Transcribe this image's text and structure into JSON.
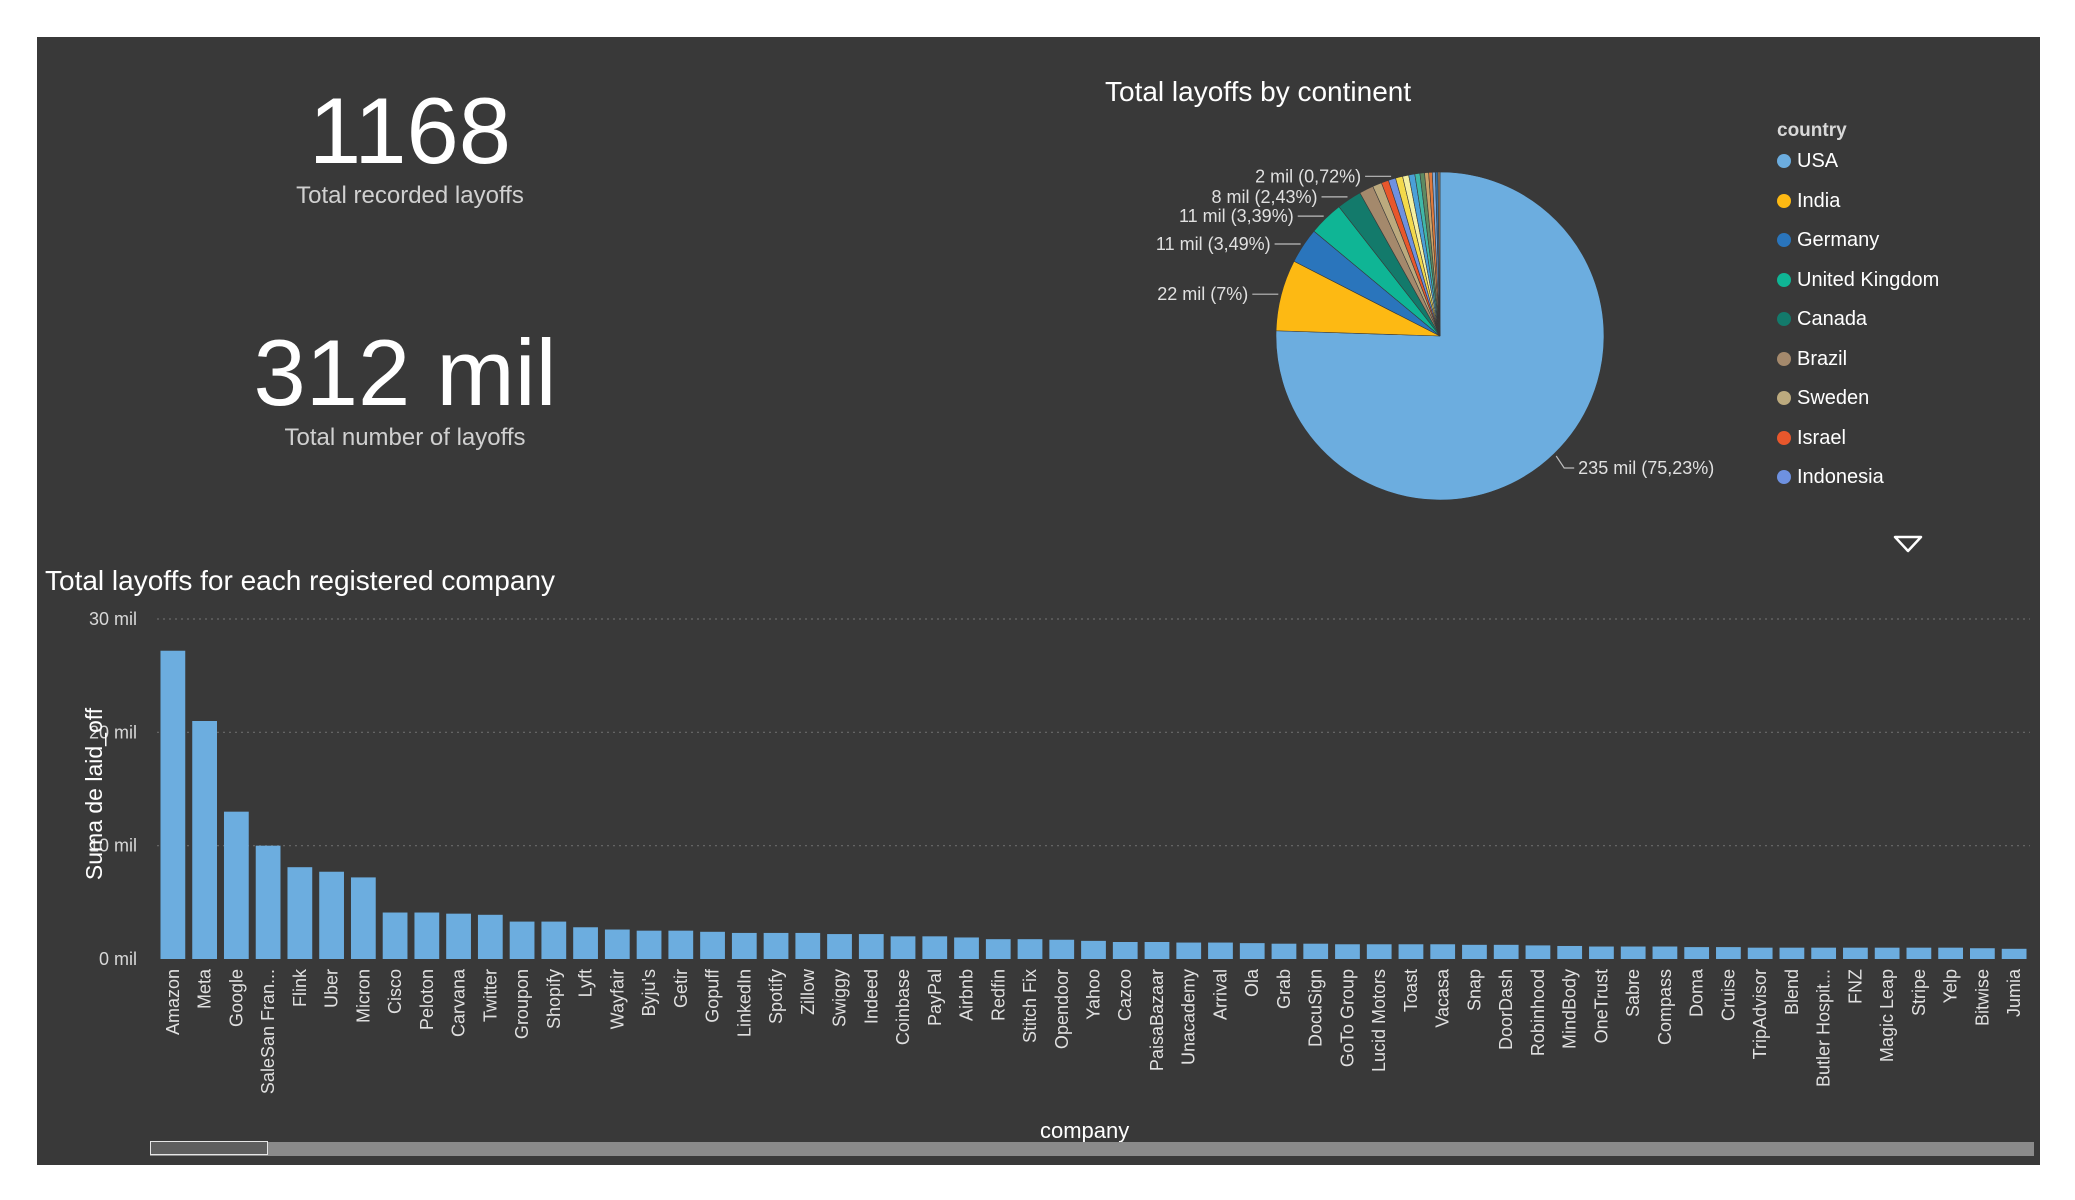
{
  "kpis": [
    {
      "value": "1168",
      "caption": "Total recorded layoffs"
    },
    {
      "value": "312 mil",
      "caption": "Total number of layoffs"
    }
  ],
  "pie": {
    "title": "Total layoffs by continent",
    "legend_title": "country",
    "more_icon": "triangle-down-icon",
    "chart_data": {
      "type": "pie",
      "title": "Total layoffs by continent",
      "legend_title": "country",
      "slices": [
        {
          "name": "USA",
          "value": 235,
          "percent": 75.23,
          "label": "235 mil (75,23%)",
          "color": "#6caddf"
        },
        {
          "name": "India",
          "value": 22,
          "percent": 7.0,
          "label": "22 mil (7%)",
          "color": "#fdb913"
        },
        {
          "name": "Germany",
          "value": 11,
          "percent": 3.49,
          "label": "11 mil (3,49%)",
          "color": "#2a75bc"
        },
        {
          "name": "United Kingdom",
          "value": 11,
          "percent": 3.39,
          "label": "11 mil (3,39%)",
          "color": "#0fb595"
        },
        {
          "name": "Canada",
          "value": 8,
          "percent": 2.43,
          "label": "8 mil (2,43%)",
          "color": "#137a6b"
        },
        {
          "name": "Brazil",
          "value": null,
          "percent": 1.4,
          "label": "",
          "color": "#a4896c"
        },
        {
          "name": "Sweden",
          "value": null,
          "percent": 0.9,
          "label": "",
          "color": "#bcaa7e"
        },
        {
          "name": "Israel",
          "value": null,
          "percent": 0.72,
          "label": "",
          "color": "#e8572c"
        },
        {
          "name": "Indonesia",
          "value": 2,
          "percent": 0.72,
          "label": "2 mil (0,72%)",
          "color": "#6e91e0"
        },
        {
          "name": "",
          "value": null,
          "percent": 0.7,
          "label": "",
          "color": "#f3d94b"
        },
        {
          "name": "",
          "value": null,
          "percent": 0.6,
          "label": "",
          "color": "#f5f0a0"
        },
        {
          "name": "",
          "value": null,
          "percent": 0.6,
          "label": "",
          "color": "#4aa0d8"
        },
        {
          "name": "",
          "value": null,
          "percent": 0.5,
          "label": "",
          "color": "#3fb8a8"
        },
        {
          "name": "",
          "value": null,
          "percent": 0.45,
          "label": "",
          "color": "#5d8a62"
        },
        {
          "name": "",
          "value": null,
          "percent": 0.4,
          "label": "",
          "color": "#c9a36a"
        },
        {
          "name": "",
          "value": null,
          "percent": 0.35,
          "label": "",
          "color": "#e07a3c"
        },
        {
          "name": "",
          "value": null,
          "percent": 0.3,
          "label": "",
          "color": "#7fa8d8"
        },
        {
          "name": "",
          "value": null,
          "percent": 0.25,
          "label": "",
          "color": "#2f6fa8"
        },
        {
          "name": "",
          "value": null,
          "percent": 0.2,
          "label": "",
          "color": "#9a7b5a"
        }
      ]
    }
  },
  "bar": {
    "title": "Total layoffs for each registered company",
    "chart_data": {
      "type": "bar",
      "title": "Total layoffs for each registered company",
      "xlabel": "company",
      "ylabel": "Suma de laid_off",
      "ylim": [
        0,
        30
      ],
      "yticks": [
        0,
        10,
        20,
        30
      ],
      "ytick_labels": [
        "0 mil",
        "10 mil",
        "20 mil",
        "30 mil"
      ],
      "grid": true,
      "bar_color": "#6caddf",
      "categories": [
        "Amazon",
        "Meta",
        "Google",
        "SaleSan Fran...",
        "Flink",
        "Uber",
        "Micron",
        "Cisco",
        "Peloton",
        "Carvana",
        "Twitter",
        "Groupon",
        "Shopify",
        "Lyft",
        "Wayfair",
        "Byju's",
        "Getir",
        "Gopuff",
        "LinkedIn",
        "Spotify",
        "Zillow",
        "Swiggy",
        "Indeed",
        "Coinbase",
        "PayPal",
        "Airbnb",
        "Redfin",
        "Stitch Fix",
        "Opendoor",
        "Yahoo",
        "Cazoo",
        "PaisaBazaar",
        "Unacademy",
        "Arrival",
        "Ola",
        "Grab",
        "DocuSign",
        "GoTo Group",
        "Lucid Motors",
        "Toast",
        "Vacasa",
        "Snap",
        "DoorDash",
        "Robinhood",
        "MindBody",
        "OneTrust",
        "Sabre",
        "Compass",
        "Doma",
        "Cruise",
        "TripAdvisor",
        "Blend",
        "Butler Hospit...",
        "FNZ",
        "Magic Leap",
        "Stripe",
        "Yelp",
        "Bitwise",
        "Jumia"
      ],
      "values": [
        27.2,
        21.0,
        13.0,
        10.0,
        8.1,
        7.7,
        7.2,
        4.1,
        4.1,
        4.0,
        3.9,
        3.3,
        3.3,
        2.8,
        2.6,
        2.5,
        2.5,
        2.4,
        2.3,
        2.3,
        2.3,
        2.2,
        2.2,
        2.0,
        2.0,
        1.9,
        1.75,
        1.75,
        1.7,
        1.6,
        1.5,
        1.5,
        1.45,
        1.45,
        1.4,
        1.35,
        1.35,
        1.3,
        1.3,
        1.3,
        1.3,
        1.25,
        1.25,
        1.2,
        1.15,
        1.1,
        1.1,
        1.1,
        1.05,
        1.05,
        1.0,
        1.0,
        1.0,
        1.0,
        1.0,
        1.0,
        1.0,
        0.95,
        0.9
      ]
    }
  },
  "scrollbar": {
    "label": "horizontal-scrollbar"
  }
}
